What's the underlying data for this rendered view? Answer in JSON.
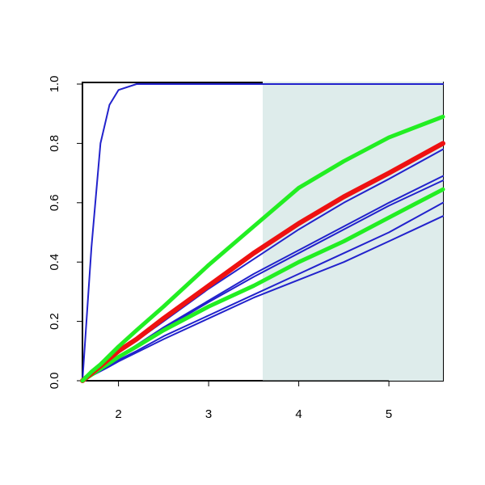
{
  "chart_data": {
    "type": "line",
    "x": [
      1.6,
      1.7,
      1.8,
      1.9,
      2,
      2.2,
      2.5,
      3,
      3.5,
      4,
      4.5,
      5,
      5.6
    ],
    "xlim": [
      1.6,
      5.6
    ],
    "xticks": [
      2,
      3,
      4,
      5
    ],
    "ylim": [
      0,
      1
    ],
    "yticks": [
      {
        "value": 0,
        "label": "0.0"
      },
      0.2,
      0.4,
      0.6,
      0.8,
      {
        "value": 1,
        "label": "1.0"
      }
    ],
    "highlight_xrange": [
      3.6,
      5.6
    ],
    "highlight_color": "#deeceb",
    "series": [
      {
        "color": "#2222cc",
        "width": 2,
        "values": [
          0,
          0.45,
          0.8,
          0.93,
          0.98,
          1.0,
          1.0,
          1.0,
          1.0,
          1.0,
          1.0,
          1.0,
          1.0
        ]
      },
      {
        "color": "#2222cc",
        "width": 2,
        "values": [
          0,
          0.016,
          0.032,
          0.048,
          0.065,
          0.095,
          0.14,
          0.21,
          0.28,
          0.34,
          0.4,
          0.47,
          0.555
        ]
      },
      {
        "color": "#2222cc",
        "width": 2,
        "values": [
          0,
          0.017,
          0.035,
          0.05,
          0.07,
          0.1,
          0.15,
          0.22,
          0.29,
          0.36,
          0.43,
          0.5,
          0.6
        ]
      },
      {
        "color": "#2222cc",
        "width": 2,
        "values": [
          0,
          0.02,
          0.04,
          0.06,
          0.08,
          0.12,
          0.175,
          0.265,
          0.35,
          0.43,
          0.51,
          0.59,
          0.675
        ]
      },
      {
        "color": "#2222cc",
        "width": 2,
        "values": [
          0,
          0.02,
          0.04,
          0.06,
          0.08,
          0.12,
          0.18,
          0.27,
          0.36,
          0.44,
          0.52,
          0.6,
          0.69
        ]
      },
      {
        "color": "#2222cc",
        "width": 2,
        "values": [
          0,
          0.022,
          0.045,
          0.07,
          0.095,
          0.135,
          0.2,
          0.31,
          0.41,
          0.51,
          0.6,
          0.68,
          0.78
        ]
      },
      {
        "color": "#22ee22",
        "width": 5,
        "values": [
          0,
          0.02,
          0.04,
          0.06,
          0.08,
          0.115,
          0.17,
          0.25,
          0.32,
          0.4,
          0.47,
          0.55,
          0.645
        ]
      },
      {
        "color": "#ee1111",
        "width": 6,
        "values": [
          0,
          0.025,
          0.05,
          0.075,
          0.1,
          0.14,
          0.21,
          0.32,
          0.43,
          0.53,
          0.62,
          0.7,
          0.8
        ]
      },
      {
        "color": "#22ee22",
        "width": 5,
        "values": [
          0,
          0.03,
          0.055,
          0.085,
          0.115,
          0.17,
          0.25,
          0.39,
          0.52,
          0.65,
          0.74,
          0.82,
          0.89
        ]
      }
    ]
  }
}
